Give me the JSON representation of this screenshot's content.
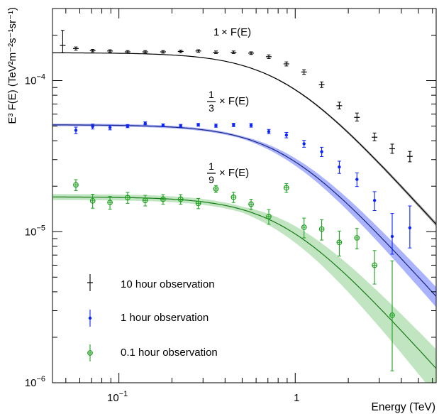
{
  "chart_data": {
    "type": "scatter",
    "xlabel": "Energy (TeV)",
    "ylabel": "E³ F(E) (TeV²m⁻²s⁻¹sr⁻¹)",
    "x_scale": "log",
    "y_scale": "log",
    "xlim": [
      0.042,
      6.3
    ],
    "ylim": [
      1e-06,
      0.0003
    ],
    "x_ticks": [
      {
        "value": 0.1,
        "base": "10",
        "exp": "−1"
      },
      {
        "value": 1,
        "base": "1",
        "exp": ""
      }
    ],
    "y_ticks": [
      {
        "value": 1e-06,
        "base": "10",
        "exp": "−6"
      },
      {
        "value": 1e-05,
        "base": "10",
        "exp": "−5"
      },
      {
        "value": 0.0001,
        "base": "10",
        "exp": "−4"
      }
    ],
    "grid": false,
    "legend_position": "bottom-left",
    "annotations": [
      {
        "prefix": "1",
        "text": "× F(E)"
      },
      {
        "num": "1",
        "den": "3",
        "text": "× F(E)"
      },
      {
        "num": "1",
        "den": "9",
        "text": "× F(E)"
      }
    ],
    "model": {
      "norm": 0.000153,
      "break_energy_tev": 0.85,
      "high_energy_slope": -1.3
    },
    "series": [
      {
        "name": "10 hour observation",
        "color": "#000000",
        "marker": "plus",
        "scale": 1,
        "points": [
          {
            "x": 0.048,
            "y": 0.000171,
            "lo": 0.000153,
            "hi": 0.000215
          },
          {
            "x": 0.057,
            "y": 0.000163,
            "lo": 0.000159,
            "hi": 0.000167
          },
          {
            "x": 0.071,
            "y": 0.000158,
            "lo": 0.000155,
            "hi": 0.000161
          },
          {
            "x": 0.089,
            "y": 0.000157,
            "lo": 0.000154,
            "hi": 0.00016
          },
          {
            "x": 0.112,
            "y": 0.000155,
            "lo": 0.000152,
            "hi": 0.000158
          },
          {
            "x": 0.141,
            "y": 0.000155,
            "lo": 0.000152,
            "hi": 0.000158
          },
          {
            "x": 0.178,
            "y": 0.000155,
            "lo": 0.000152,
            "hi": 0.000158
          },
          {
            "x": 0.224,
            "y": 0.000156,
            "lo": 0.000153,
            "hi": 0.000159
          },
          {
            "x": 0.282,
            "y": 0.000157,
            "lo": 0.000154,
            "hi": 0.00016
          },
          {
            "x": 0.355,
            "y": 0.000154,
            "lo": 0.000151,
            "hi": 0.000157
          },
          {
            "x": 0.447,
            "y": 0.000154,
            "lo": 0.000151,
            "hi": 0.000157
          },
          {
            "x": 0.562,
            "y": 0.000152,
            "lo": 0.000149,
            "hi": 0.000155
          },
          {
            "x": 0.708,
            "y": 0.000144,
            "lo": 0.00014,
            "hi": 0.000148
          },
          {
            "x": 0.891,
            "y": 0.000129,
            "lo": 0.000125,
            "hi": 0.000133
          },
          {
            "x": 1.122,
            "y": 0.000114,
            "lo": 0.00011,
            "hi": 0.000118
          },
          {
            "x": 1.413,
            "y": 9.39e-05,
            "lo": 9e-05,
            "hi": 9.8e-05
          },
          {
            "x": 1.778,
            "y": 6.82e-05,
            "lo": 6.5e-05,
            "hi": 7.2e-05
          },
          {
            "x": 2.239,
            "y": 5.71e-05,
            "lo": 5.4e-05,
            "hi": 6.1e-05
          },
          {
            "x": 2.818,
            "y": 4.22e-05,
            "lo": 4e-05,
            "hi": 4.5e-05
          },
          {
            "x": 3.548,
            "y": 3.54e-05,
            "lo": 3.3e-05,
            "hi": 3.8e-05
          },
          {
            "x": 4.467,
            "y": 3.15e-05,
            "lo": 2.9e-05,
            "hi": 3.4e-05
          }
        ]
      },
      {
        "name": "1 hour observation",
        "color": "#0b24fb",
        "marker": "dot",
        "scale": 0.3333,
        "points": [
          {
            "x": 0.057,
            "y": 4.69e-05,
            "lo": 4.45e-05,
            "hi": 4.92e-05
          },
          {
            "x": 0.071,
            "y": 4.97e-05,
            "lo": 4.78e-05,
            "hi": 5.15e-05
          },
          {
            "x": 0.089,
            "y": 4.89e-05,
            "lo": 4.72e-05,
            "hi": 5.06e-05
          },
          {
            "x": 0.112,
            "y": 5e-05,
            "lo": 4.88e-05,
            "hi": 5.12e-05
          },
          {
            "x": 0.141,
            "y": 5.22e-05,
            "lo": 5.1e-05,
            "hi": 5.33e-05
          },
          {
            "x": 0.178,
            "y": 5.06e-05,
            "lo": 4.95e-05,
            "hi": 5.17e-05
          },
          {
            "x": 0.224,
            "y": 5.02e-05,
            "lo": 4.91e-05,
            "hi": 5.13e-05
          },
          {
            "x": 0.282,
            "y": 5.1e-05,
            "lo": 4.99e-05,
            "hi": 5.21e-05
          },
          {
            "x": 0.355,
            "y": 5.03e-05,
            "lo": 4.91e-05,
            "hi": 5.15e-05
          },
          {
            "x": 0.447,
            "y": 5.09e-05,
            "lo": 4.96e-05,
            "hi": 5.22e-05
          },
          {
            "x": 0.562,
            "y": 5.06e-05,
            "lo": 4.92e-05,
            "hi": 5.2e-05
          },
          {
            "x": 0.708,
            "y": 4.6e-05,
            "lo": 4.45e-05,
            "hi": 4.75e-05
          },
          {
            "x": 0.891,
            "y": 4.36e-05,
            "lo": 4.18e-05,
            "hi": 4.54e-05
          },
          {
            "x": 1.122,
            "y": 3.82e-05,
            "lo": 3.62e-05,
            "hi": 4.02e-05
          },
          {
            "x": 1.413,
            "y": 3.38e-05,
            "lo": 3.14e-05,
            "hi": 3.62e-05
          },
          {
            "x": 1.778,
            "y": 2.68e-05,
            "lo": 2.43e-05,
            "hi": 2.93e-05
          },
          {
            "x": 2.239,
            "y": 2.22e-05,
            "lo": 1.99e-05,
            "hi": 2.45e-05
          },
          {
            "x": 2.818,
            "y": 1.61e-05,
            "lo": 1.38e-05,
            "hi": 1.84e-05
          },
          {
            "x": 3.548,
            "y": 9.3e-06,
            "lo": 7.1e-06,
            "hi": 1.32e-05
          },
          {
            "x": 4.467,
            "y": 1.06e-05,
            "lo": 7.8e-06,
            "hi": 1.48e-05
          }
        ]
      },
      {
        "name": "0.1 hour observation",
        "color": "#1fa11f",
        "marker": "circle-plus",
        "scale": 0.1111,
        "points": [
          {
            "x": 0.057,
            "y": 2.04e-05,
            "lo": 1.87e-05,
            "hi": 2.21e-05
          },
          {
            "x": 0.071,
            "y": 1.6e-05,
            "lo": 1.43e-05,
            "hi": 1.77e-05
          },
          {
            "x": 0.089,
            "y": 1.56e-05,
            "lo": 1.41e-05,
            "hi": 1.71e-05
          },
          {
            "x": 0.112,
            "y": 1.68e-05,
            "lo": 1.54e-05,
            "hi": 1.82e-05
          },
          {
            "x": 0.141,
            "y": 1.61e-05,
            "lo": 1.48e-05,
            "hi": 1.74e-05
          },
          {
            "x": 0.178,
            "y": 1.64e-05,
            "lo": 1.52e-05,
            "hi": 1.76e-05
          },
          {
            "x": 0.224,
            "y": 1.64e-05,
            "lo": 1.52e-05,
            "hi": 1.76e-05
          },
          {
            "x": 0.282,
            "y": 1.54e-05,
            "lo": 1.42e-05,
            "hi": 1.66e-05
          },
          {
            "x": 0.355,
            "y": 1.92e-05,
            "lo": 1.82e-05,
            "hi": 2.02e-05
          },
          {
            "x": 0.447,
            "y": 1.69e-05,
            "lo": 1.56e-05,
            "hi": 1.82e-05
          },
          {
            "x": 0.562,
            "y": 1.52e-05,
            "lo": 1.4e-05,
            "hi": 1.64e-05
          },
          {
            "x": 0.708,
            "y": 1.26e-05,
            "lo": 1.12e-05,
            "hi": 1.4e-05
          },
          {
            "x": 0.891,
            "y": 1.95e-05,
            "lo": 1.82e-05,
            "hi": 2.08e-05
          },
          {
            "x": 1.122,
            "y": 1.07e-05,
            "lo": 9.1e-06,
            "hi": 1.23e-05
          },
          {
            "x": 1.413,
            "y": 1.04e-05,
            "lo": 8.8e-06,
            "hi": 1.2e-05
          },
          {
            "x": 1.778,
            "y": 8.5e-06,
            "lo": 6.9e-06,
            "hi": 1.01e-05
          },
          {
            "x": 2.239,
            "y": 9.1e-06,
            "lo": 7.7e-06,
            "hi": 1.05e-05
          },
          {
            "x": 2.818,
            "y": 6e-06,
            "lo": 4.5e-06,
            "hi": 7.5e-06
          },
          {
            "x": 3.548,
            "y": 2.8e-06,
            "lo": 1.2e-06,
            "hi": 6.4e-06
          }
        ]
      }
    ]
  }
}
